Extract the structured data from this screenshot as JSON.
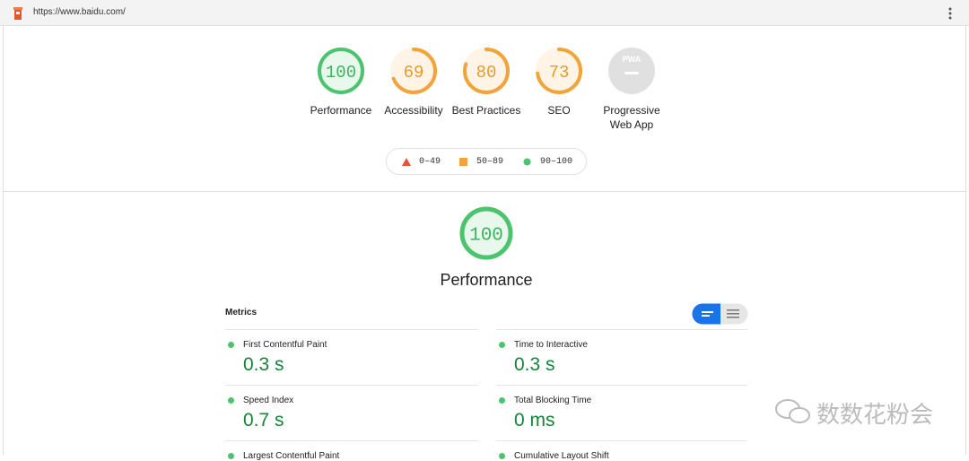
{
  "browser": {
    "url": "https://www.baidu.com/"
  },
  "gauges": [
    {
      "score": 100,
      "label": "Performance"
    },
    {
      "score": 69,
      "label": "Accessibility"
    },
    {
      "score": 80,
      "label": "Best Practices"
    },
    {
      "score": 73,
      "label": "SEO"
    },
    {
      "badge": "PWA",
      "label": "Progressive Web App"
    }
  ],
  "legend": [
    "0–49",
    "50–89",
    "90–100"
  ],
  "category": {
    "score": 100,
    "title": "Performance"
  },
  "metrics": {
    "heading": "Metrics",
    "items": [
      {
        "label": "First Contentful Paint",
        "value": "0.3 s"
      },
      {
        "label": "Time to Interactive",
        "value": "0.3 s"
      },
      {
        "label": "Speed Index",
        "value": "0.7 s"
      },
      {
        "label": "Total Blocking Time",
        "value": "0 ms"
      },
      {
        "label": "Largest Contentful Paint"
      },
      {
        "label": "Cumulative Layout Shift"
      }
    ]
  },
  "watermark": "数数花粉会"
}
